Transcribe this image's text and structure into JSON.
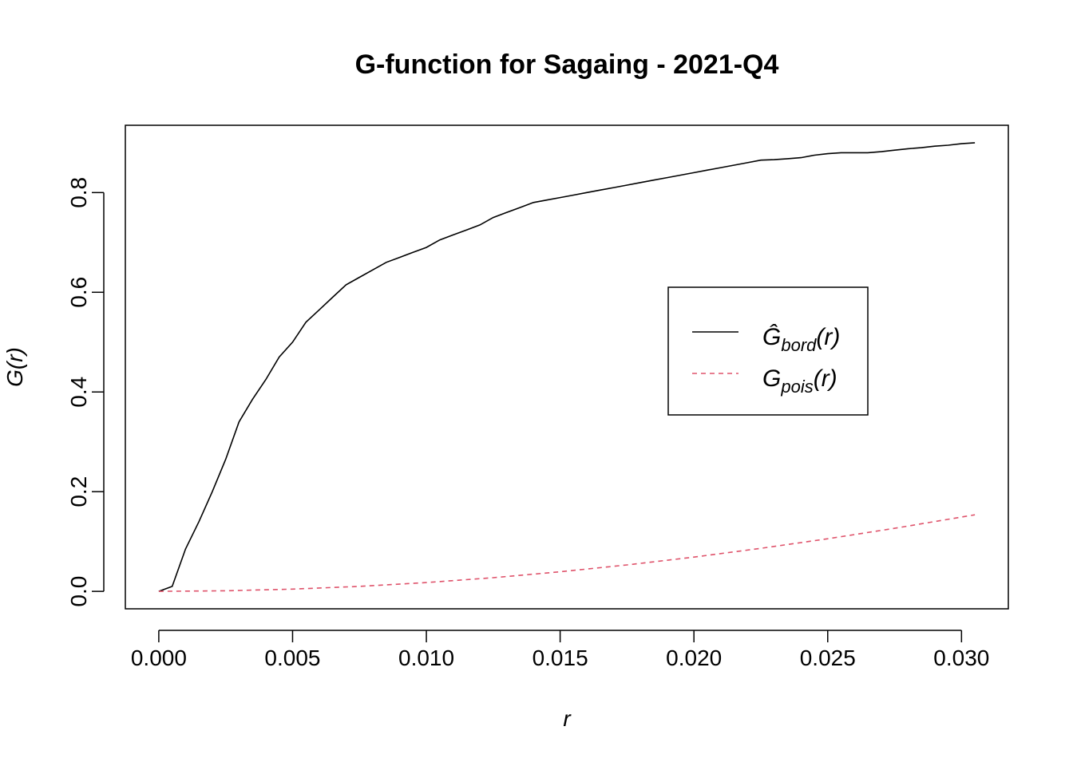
{
  "chart_data": {
    "type": "line",
    "title": "G-function for Sagaing - 2021-Q4",
    "xlabel": "r",
    "ylabel": "G(r)",
    "xlim": [
      -0.00125,
      0.03175
    ],
    "ylim": [
      -0.035,
      0.935
    ],
    "xticks": [
      "0.000",
      "0.005",
      "0.010",
      "0.015",
      "0.020",
      "0.025",
      "0.030"
    ],
    "yticks": [
      "0.0",
      "0.2",
      "0.4",
      "0.6",
      "0.8"
    ],
    "grid": false,
    "legend_position": "right-middle",
    "series": [
      {
        "name": "Ĝ_bord(r)",
        "label_main": "Ĝ",
        "label_sub": "bord",
        "label_tail": "(r)",
        "color": "#000000",
        "dash": "solid",
        "x": [
          0.0,
          0.0005,
          0.001,
          0.0015,
          0.002,
          0.0025,
          0.003,
          0.0035,
          0.004,
          0.0045,
          0.005,
          0.0055,
          0.006,
          0.0065,
          0.007,
          0.0075,
          0.008,
          0.0085,
          0.009,
          0.0095,
          0.01,
          0.0105,
          0.011,
          0.0115,
          0.012,
          0.0125,
          0.013,
          0.0135,
          0.014,
          0.0145,
          0.015,
          0.0155,
          0.016,
          0.0165,
          0.017,
          0.0175,
          0.018,
          0.0185,
          0.019,
          0.0195,
          0.02,
          0.0205,
          0.021,
          0.0215,
          0.022,
          0.0225,
          0.023,
          0.0235,
          0.024,
          0.0245,
          0.025,
          0.0255,
          0.026,
          0.0265,
          0.027,
          0.0275,
          0.028,
          0.0285,
          0.029,
          0.0295,
          0.03,
          0.0305
        ],
        "y": [
          0.0,
          0.01,
          0.085,
          0.14,
          0.2,
          0.265,
          0.34,
          0.385,
          0.425,
          0.47,
          0.5,
          0.54,
          0.565,
          0.59,
          0.615,
          0.63,
          0.645,
          0.66,
          0.67,
          0.68,
          0.69,
          0.705,
          0.715,
          0.725,
          0.735,
          0.75,
          0.76,
          0.77,
          0.78,
          0.785,
          0.79,
          0.795,
          0.8,
          0.805,
          0.81,
          0.815,
          0.82,
          0.825,
          0.83,
          0.835,
          0.84,
          0.845,
          0.85,
          0.855,
          0.86,
          0.865,
          0.866,
          0.868,
          0.87,
          0.875,
          0.878,
          0.88,
          0.88,
          0.88,
          0.882,
          0.885,
          0.888,
          0.89,
          0.893,
          0.895,
          0.898,
          0.9
        ]
      },
      {
        "name": "G_pois(r)",
        "label_main": "G",
        "label_sub": "pois",
        "label_tail": "(r)",
        "color": "#DF536B",
        "dash": "dashed",
        "x": [
          0.0,
          0.0025,
          0.005,
          0.0075,
          0.01,
          0.0125,
          0.015,
          0.0175,
          0.02,
          0.0225,
          0.025,
          0.0275,
          0.03,
          0.0305
        ],
        "y": [
          0.0,
          0.0011,
          0.0045,
          0.01,
          0.0177,
          0.0275,
          0.0393,
          0.053,
          0.0688,
          0.0863,
          0.1056,
          0.1265,
          0.149,
          0.1535
        ]
      }
    ]
  }
}
